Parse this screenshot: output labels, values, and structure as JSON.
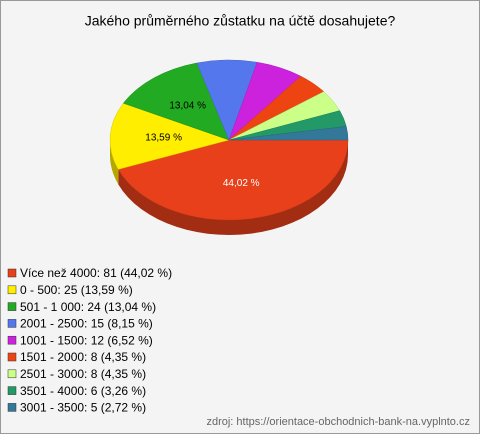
{
  "chart_data": {
    "type": "pie",
    "title": "Jakého průměrného zůstatku na účtě dosahujete?",
    "categories": [
      "Více než 4000: 81 (44,02 %)",
      "0 - 500: 25 (13,59 %)",
      "501 - 1 000: 24 (13,04 %)",
      "2001 - 2500: 15 (8,15 %)",
      "1001 - 1500: 12 (6,52 %)",
      "1501 - 2000: 8 (4,35 %)",
      "2501 - 3000: 8 (4,35 %)",
      "3501 - 4000: 6 (3,26 %)",
      "3001 - 3500: 5 (2,72 %)"
    ],
    "values": [
      44.02,
      13.59,
      13.04,
      8.15,
      6.52,
      4.35,
      4.35,
      3.26,
      2.72
    ],
    "value_labels": [
      "44,02 %",
      "13,59 %",
      "13,04 %",
      null,
      null,
      null,
      null,
      null,
      null
    ],
    "colors": [
      "#e8401a",
      "#ffee00",
      "#22aa22",
      "#5577ee",
      "#cc22dd",
      "#ee4411",
      "#ccff88",
      "#229966",
      "#337799"
    ],
    "source": "zdroj: https://orientace-obchodnich-bank-na.vyplnto.cz"
  }
}
